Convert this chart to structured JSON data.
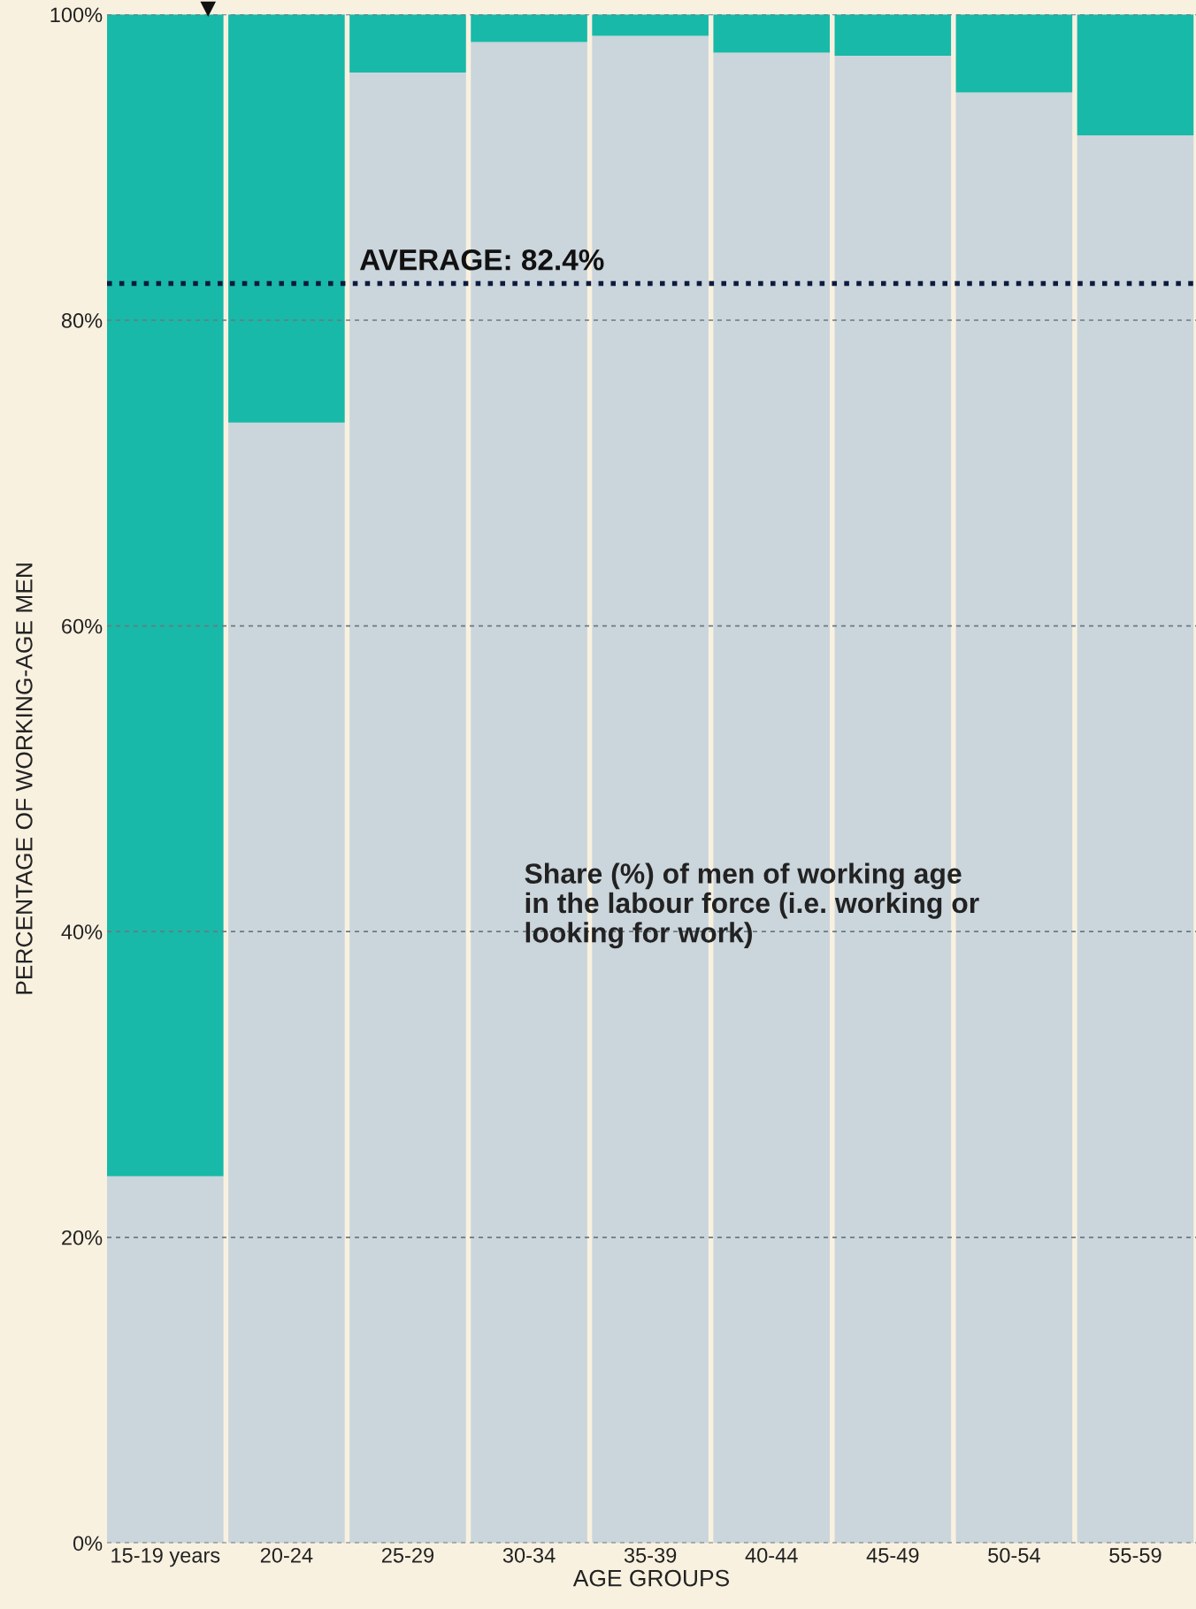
{
  "chart_data": {
    "type": "bar",
    "stacked": true,
    "ylabel": "PERCENTAGE OF WORKING-AGE MEN",
    "xlabel": "AGE GROUPS",
    "categories": [
      "15-19 years",
      "20-24",
      "25-29",
      "30-34",
      "35-39",
      "40-44",
      "45-49",
      "50-54",
      "55-59"
    ],
    "series": [
      {
        "color": "#cbd5dc",
        "values": [
          24.0,
          73.3,
          96.2,
          98.2,
          98.6,
          97.5,
          97.3,
          94.9,
          92.1
        ]
      },
      {
        "color": "#18b9a8",
        "values": [
          76.0,
          26.7,
          3.8,
          1.8,
          1.4,
          2.5,
          2.7,
          5.1,
          7.9
        ]
      }
    ],
    "ylim": [
      0,
      100
    ],
    "yticks": [
      {
        "value": 0,
        "label": "0%"
      },
      {
        "value": 20,
        "label": "20%"
      },
      {
        "value": 40,
        "label": "40%"
      },
      {
        "value": 60,
        "label": "60%"
      },
      {
        "value": 80,
        "label": "80%"
      },
      {
        "value": 100,
        "label": "100%"
      }
    ],
    "grid": "y",
    "ref_lines": [
      {
        "axis": "y",
        "value": 82.4,
        "label": "AVERAGE: 82.4%",
        "color": "#0d1b3e",
        "line_style": "dotted"
      }
    ],
    "annotations": [
      "Share (%) of men of working age\nin the labour force (i.e. working or\nlooking for work)"
    ]
  }
}
